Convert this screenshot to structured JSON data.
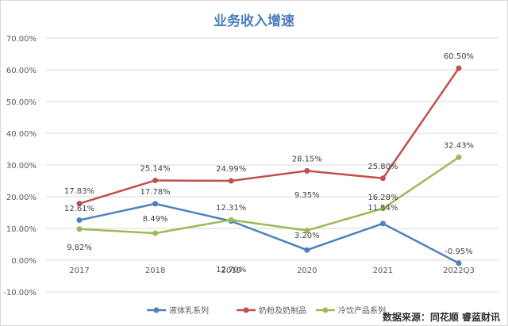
{
  "chart_data": {
    "type": "line",
    "title": "业务收入增速",
    "categories": [
      "2017",
      "2018",
      "2019",
      "2020",
      "2021",
      "2022Q3"
    ],
    "ylim": [
      -10,
      70
    ],
    "yticks": [
      "-10.00%",
      "0.00%",
      "10.00%",
      "20.00%",
      "30.00%",
      "40.00%",
      "50.00%",
      "60.00%",
      "70.00%"
    ],
    "series": [
      {
        "name": "液体乳系列",
        "color": "#4f81bd",
        "values": [
          12.61,
          17.78,
          12.31,
          3.2,
          11.54,
          -0.95
        ],
        "labels": [
          "12.61%",
          "17.78%",
          "12.31%",
          "3.20%",
          "11.54%",
          "-0.95%"
        ]
      },
      {
        "name": "奶粉及奶制品",
        "color": "#c0504d",
        "values": [
          17.83,
          25.14,
          24.99,
          28.15,
          25.8,
          60.5
        ],
        "labels": [
          "17.83%",
          "25.14%",
          "24.99%",
          "28.15%",
          "25.80%",
          "60.50%"
        ]
      },
      {
        "name": "冷饮产品系列",
        "color": "#9bbb59",
        "values": [
          9.82,
          8.49,
          12.7,
          9.35,
          16.28,
          32.43
        ],
        "labels": [
          "9.82%",
          "8.49%",
          "12.70%",
          "9.35%",
          "16.28%",
          "32.43%"
        ]
      }
    ],
    "legend_position": "bottom"
  },
  "source_text": "数据来源：同花顺 睿蓝财讯"
}
